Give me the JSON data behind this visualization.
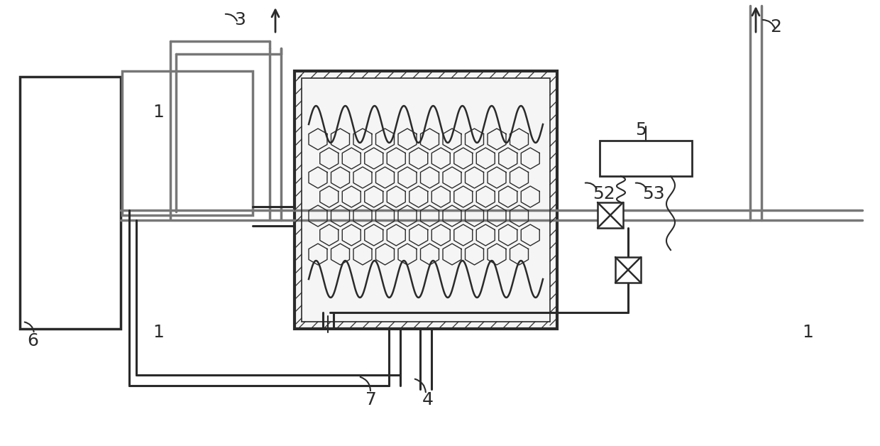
{
  "bg_color": "#ffffff",
  "lc": "#2a2a2a",
  "gc": "#777777",
  "fig_width": 12.4,
  "fig_height": 6.28,
  "dpi": 100
}
